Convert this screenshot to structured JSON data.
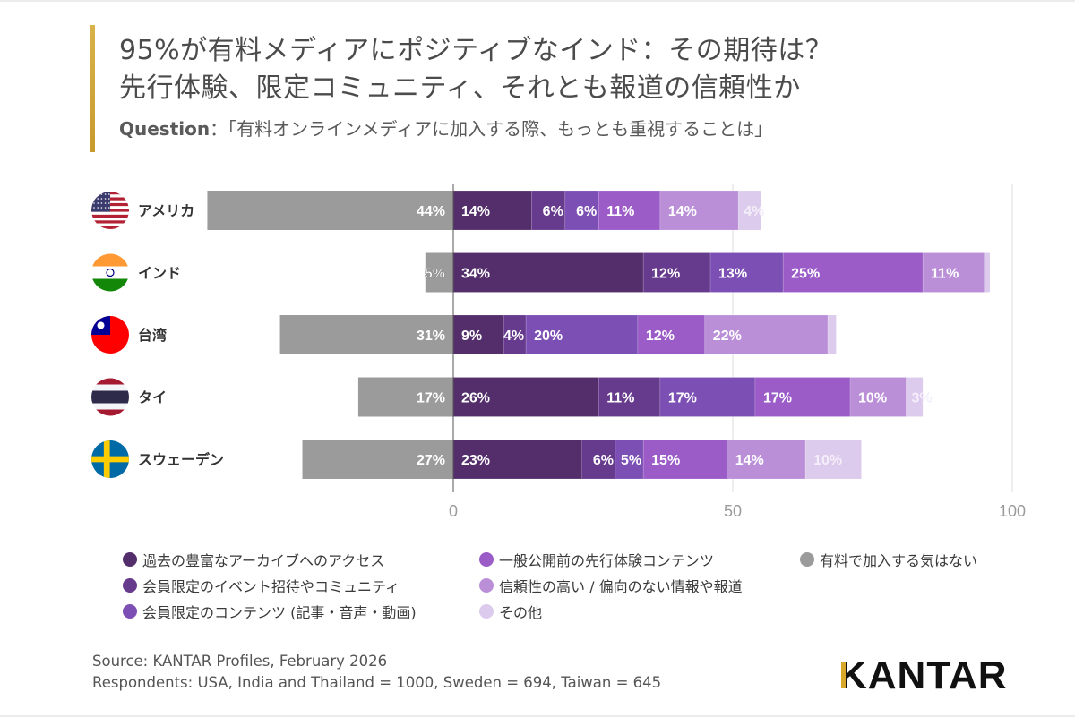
{
  "header": {
    "title_line1": "95%が有料メディアにポジティブなインド：その期待は？",
    "title_line2": "先行体験、限定コミュニティ、それとも報道の信頼性か",
    "question_label": "Question",
    "question_text": "：「有料オンラインメディアに加入する際、もっとも重視することは」",
    "accent_color": "#d0a63a"
  },
  "chart_data": {
    "type": "bar",
    "orientation": "horizontal",
    "stacked": true,
    "diverging": true,
    "title": "95%が有料メディアにポジティブなインド：その期待は？ 先行体験、限定コミュニティ、それとも報道の信頼性か",
    "xlabel": "",
    "ylabel": "",
    "xlim": [
      -44,
      100
    ],
    "xticks": [
      0,
      50,
      100
    ],
    "grid": true,
    "legend_position": "bottom",
    "categories": [
      "アメリカ",
      "インド",
      "台湾",
      "タイ",
      "スウェーデン"
    ],
    "flags": [
      "usa",
      "india",
      "taiwan",
      "thailand",
      "sweden"
    ],
    "negative_series": {
      "name": "有料で加入する気はない",
      "color": "#9b9b9b",
      "values": [
        44,
        5,
        31,
        17,
        27
      ],
      "labels": [
        "44%",
        "5%",
        "31%",
        "17%",
        "27%"
      ]
    },
    "series": [
      {
        "name": "過去の豊富なアーカイブへのアクセス",
        "color": "#532e6b",
        "values": [
          14,
          34,
          9,
          26,
          23
        ],
        "labels": [
          "14%",
          "34%",
          "9%",
          "26%",
          "23%"
        ]
      },
      {
        "name": "会員限定のイベント招待やコミュニティ",
        "color": "#663a8c",
        "values": [
          6,
          12,
          4,
          11,
          6
        ],
        "labels": [
          "6%",
          "12%",
          "4%",
          "11%",
          "6%"
        ]
      },
      {
        "name": "会員限定のコンテンツ (記事・音声・動画)",
        "color": "#7c4fb4",
        "values": [
          6,
          13,
          20,
          17,
          5
        ],
        "labels": [
          "6%",
          "13%",
          "20%",
          "17%",
          "5%"
        ]
      },
      {
        "name": "一般公開前の先行体験コンテンツ",
        "color": "#9b5cc8",
        "values": [
          11,
          25,
          12,
          17,
          15
        ],
        "labels": [
          "11%",
          "25%",
          "12%",
          "17%",
          "15%"
        ]
      },
      {
        "name": "信頼性の高い / 偏向のない情報や報道",
        "color": "#ba8fd8",
        "values": [
          14,
          11,
          22,
          10,
          14
        ],
        "labels": [
          "14%",
          "11%",
          "22%",
          "10%",
          "14%"
        ]
      },
      {
        "name": "その他",
        "color": "#dccbec",
        "values": [
          4,
          1,
          1.5,
          3,
          10
        ],
        "labels": [
          "4%",
          "",
          "",
          "3%",
          "10%"
        ]
      }
    ]
  },
  "legend": {
    "items": [
      {
        "label": "過去の豊富なアーカイブへのアクセス",
        "color": "#532e6b"
      },
      {
        "label": "会員限定のイベント招待やコミュニティ",
        "color": "#663a8c"
      },
      {
        "label": "会員限定のコンテンツ (記事・音声・動画)",
        "color": "#7c4fb4"
      },
      {
        "label": "一般公開前の先行体験コンテンツ",
        "color": "#9b5cc8"
      },
      {
        "label": "信頼性の高い / 偏向のない情報や報道",
        "color": "#ba8fd8"
      },
      {
        "label": "その他",
        "color": "#dccbec"
      },
      {
        "label": "有料で加入する気はない",
        "color": "#9b9b9b"
      }
    ]
  },
  "footer": {
    "source": "Source: KANTAR Profiles, February 2026",
    "respondents": "Respondents: USA, India and Thailand = 1000, Sweden = 694, Taiwan =  645",
    "logo_first": "K",
    "logo_rest": "ANTAR"
  }
}
